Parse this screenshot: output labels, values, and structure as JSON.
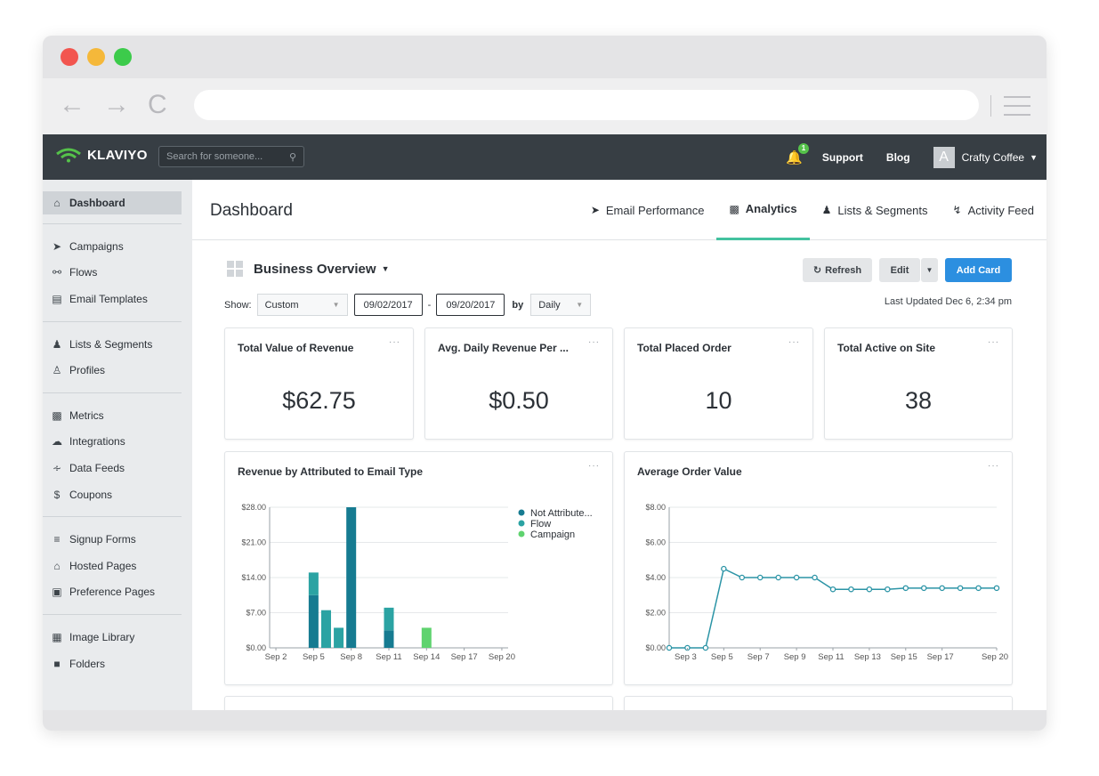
{
  "browser": {
    "back_glyph": "←",
    "forward_glyph": "→",
    "reload_glyph": "C",
    "url": ""
  },
  "topnav": {
    "logo_text": "KLAVIYO",
    "search_placeholder": "Search for someone...",
    "notification_count": "1",
    "support_label": "Support",
    "blog_label": "Blog",
    "avatar_letter": "A",
    "account_name": "Crafty Coffee"
  },
  "sidebar": {
    "dashboard": "Dashboard",
    "campaigns": "Campaigns",
    "flows": "Flows",
    "email_templates": "Email Templates",
    "lists_segments": "Lists & Segments",
    "profiles": "Profiles",
    "metrics": "Metrics",
    "integrations": "Integrations",
    "data_feeds": "Data Feeds",
    "coupons": "Coupons",
    "signup_forms": "Signup Forms",
    "hosted_pages": "Hosted Pages",
    "preference_pages": "Preference Pages",
    "image_library": "Image Library",
    "folders": "Folders"
  },
  "header": {
    "title": "Dashboard",
    "tabs": [
      {
        "label": "Email Performance",
        "icon": "paper-plane-icon"
      },
      {
        "label": "Analytics",
        "icon": "bar-chart-icon"
      },
      {
        "label": "Lists & Segments",
        "icon": "users-icon"
      },
      {
        "label": "Activity Feed",
        "icon": "bolt-icon"
      }
    ],
    "active_tab": "Analytics"
  },
  "toolbar": {
    "overview_title": "Business Overview",
    "refresh_label": "Refresh",
    "edit_label": "Edit",
    "add_card_label": "Add Card",
    "last_updated": "Last Updated Dec 6, 2:34 pm"
  },
  "filters": {
    "show_label": "Show:",
    "range_value": "Custom",
    "start_date": "09/02/2017",
    "separator": "-",
    "end_date": "09/20/2017",
    "by_label": "by",
    "interval_value": "Daily"
  },
  "cards": {
    "revenue": {
      "title": "Total Value of Revenue",
      "value": "$62.75"
    },
    "avg_daily": {
      "title": "Avg. Daily Revenue Per ...",
      "value": "$0.50"
    },
    "placed_order": {
      "title": "Total Placed Order",
      "value": "10"
    },
    "active_on_site": {
      "title": "Total Active on Site",
      "value": "38"
    },
    "menu_glyph": "···"
  },
  "chart_data": [
    {
      "type": "bar",
      "title": "Revenue by Attributed to Email Type",
      "x": [
        "Sep 2",
        "Sep 3",
        "Sep 4",
        "Sep 5",
        "Sep 6",
        "Sep 7",
        "Sep 8",
        "Sep 9",
        "Sep 10",
        "Sep 11",
        "Sep 12",
        "Sep 13",
        "Sep 14",
        "Sep 15",
        "Sep 16",
        "Sep 17",
        "Sep 18",
        "Sep 19",
        "Sep 20"
      ],
      "xtick_labels": [
        "Sep 2",
        "Sep 5",
        "Sep 8",
        "Sep 11",
        "Sep 14",
        "Sep 17",
        "Sep 20"
      ],
      "ytick_labels": [
        "$0.00",
        "$7.00",
        "$14.00",
        "$21.00",
        "$28.00"
      ],
      "ylim": [
        0,
        28
      ],
      "stacked": true,
      "series": [
        {
          "name": "Not Attribute...",
          "color": "#167b91",
          "values": [
            0,
            0,
            0,
            10.5,
            0,
            0,
            28,
            0,
            0,
            3.5,
            0,
            0,
            0,
            0,
            0,
            0,
            0,
            0,
            0
          ]
        },
        {
          "name": "Flow",
          "color": "#2ba3a3",
          "values": [
            0,
            0,
            0,
            4.5,
            7.5,
            4,
            0,
            0,
            0,
            4.5,
            0,
            0,
            0,
            0,
            0,
            0,
            0,
            0,
            0
          ]
        },
        {
          "name": "Campaign",
          "color": "#5fd36f",
          "values": [
            0,
            0,
            0,
            0,
            0,
            0,
            0,
            0,
            0,
            0,
            0,
            0,
            4,
            0,
            0,
            0,
            0,
            0,
            0
          ]
        }
      ],
      "legend": "top-right"
    },
    {
      "type": "line",
      "title": "Average Order Value",
      "x": [
        "Sep 2",
        "Sep 3",
        "Sep 4",
        "Sep 5",
        "Sep 6",
        "Sep 7",
        "Sep 8",
        "Sep 9",
        "Sep 10",
        "Sep 11",
        "Sep 12",
        "Sep 13",
        "Sep 14",
        "Sep 15",
        "Sep 16",
        "Sep 17",
        "Sep 18",
        "Sep 19",
        "Sep 20"
      ],
      "xtick_labels": [
        "Sep 3",
        "Sep 5",
        "Sep 7",
        "Sep 9",
        "Sep 11",
        "Sep 13",
        "Sep 15",
        "Sep 17",
        "Sep 20"
      ],
      "ytick_labels": [
        "$0.00",
        "$2.00",
        "$4.00",
        "$6.00",
        "$8.00"
      ],
      "ylim": [
        0,
        8
      ],
      "series": [
        {
          "color": "#2b94a6",
          "values": [
            0,
            0,
            0,
            4.5,
            4.0,
            4.0,
            4.0,
            4.0,
            4.0,
            3.33,
            3.33,
            3.33,
            3.33,
            3.4,
            3.4,
            3.4,
            3.4,
            3.4,
            3.4
          ]
        }
      ]
    }
  ]
}
